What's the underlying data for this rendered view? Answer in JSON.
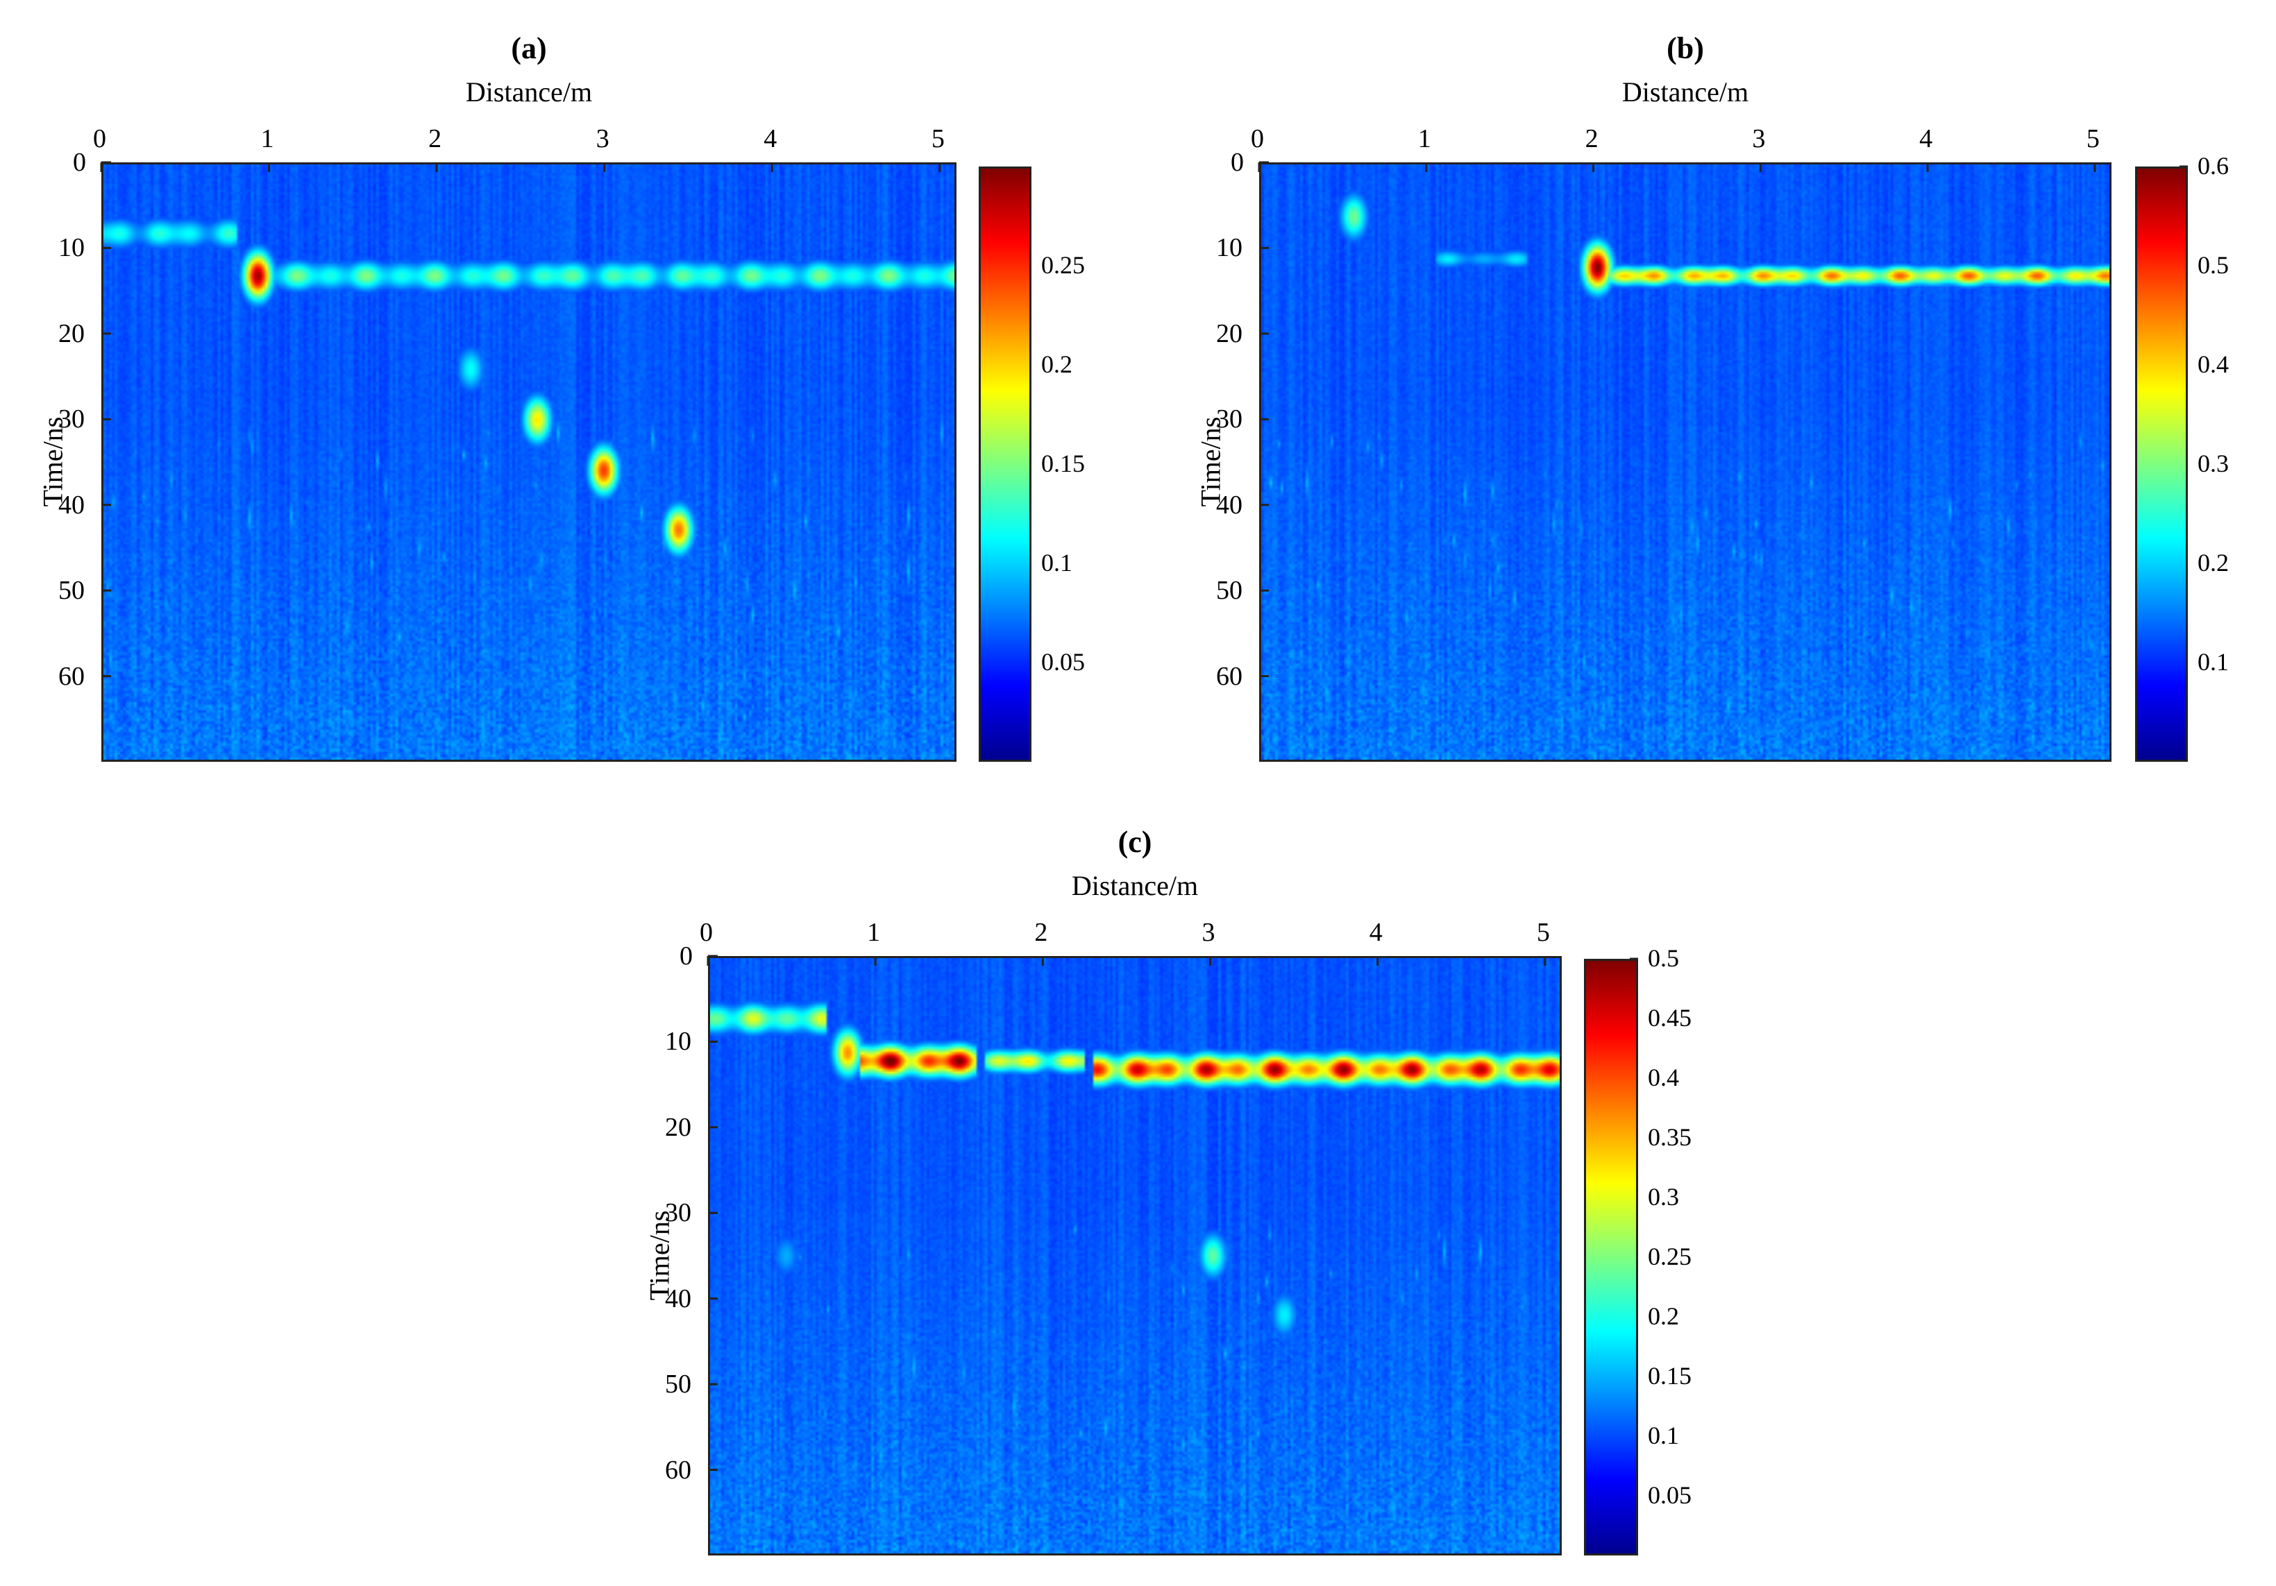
{
  "chart_data": [
    {
      "type": "heatmap",
      "panel_label": "(a)",
      "xlabel": "Distance/m",
      "ylabel": "Time/ns",
      "x_axis_position": "top",
      "xlim": [
        0,
        5.1
      ],
      "ylim": [
        0,
        70
      ],
      "y_reversed": true,
      "xticks": [
        0,
        1,
        2,
        3,
        4,
        5
      ],
      "yticks": [
        0,
        10,
        20,
        30,
        40,
        50,
        60
      ],
      "colormap": "jet",
      "colorbar": {
        "min": 0,
        "max": 0.3,
        "ticks": [
          0.05,
          0.1,
          0.15,
          0.2,
          0.25
        ]
      },
      "features": [
        {
          "kind": "horizontal_band",
          "x_range": [
            0,
            0.8
          ],
          "time": 8,
          "thickness": 4,
          "value": 0.1
        },
        {
          "kind": "horizontal_band",
          "x_range": [
            0.85,
            5.1
          ],
          "time": 13,
          "thickness": 4,
          "value": 0.12
        },
        {
          "kind": "hotspot",
          "x": 0.92,
          "time": 13,
          "value": 0.29
        },
        {
          "kind": "hotspot",
          "x": 2.2,
          "time": 24,
          "value": 0.09
        },
        {
          "kind": "hotspot",
          "x": 2.6,
          "time": 30,
          "value": 0.18
        },
        {
          "kind": "hotspot",
          "x": 3.0,
          "time": 36,
          "value": 0.24
        },
        {
          "kind": "hotspot",
          "x": 3.45,
          "time": 43,
          "value": 0.22
        }
      ]
    },
    {
      "type": "heatmap",
      "panel_label": "(b)",
      "xlabel": "Distance/m",
      "ylabel": "Time/ns",
      "x_axis_position": "top",
      "xlim": [
        0,
        5.1
      ],
      "ylim": [
        0,
        70
      ],
      "y_reversed": true,
      "xticks": [
        0,
        1,
        2,
        3,
        4,
        5
      ],
      "yticks": [
        0,
        10,
        20,
        30,
        40,
        50,
        60
      ],
      "colormap": "jet",
      "colorbar": {
        "min": 0,
        "max": 0.6,
        "ticks": [
          0.1,
          0.2,
          0.3,
          0.4,
          0.5,
          0.6
        ]
      },
      "features": [
        {
          "kind": "hotspot",
          "x": 0.55,
          "time": 6,
          "value": 0.25
        },
        {
          "kind": "horizontal_band",
          "x_range": [
            1.05,
            1.6
          ],
          "time": 11,
          "thickness": 2.5,
          "value": 0.15
        },
        {
          "kind": "horizontal_band",
          "x_range": [
            2.0,
            5.1
          ],
          "time": 13,
          "thickness": 2.5,
          "value": 0.42
        },
        {
          "kind": "hotspot",
          "x": 2.02,
          "time": 12,
          "value": 0.6
        }
      ]
    },
    {
      "type": "heatmap",
      "panel_label": "(c)",
      "xlabel": "Distance/m",
      "ylabel": "Time/ns",
      "x_axis_position": "top",
      "xlim": [
        0,
        5.1
      ],
      "ylim": [
        0,
        70
      ],
      "y_reversed": true,
      "xticks": [
        0,
        1,
        2,
        3,
        4,
        5
      ],
      "yticks": [
        0,
        10,
        20,
        30,
        40,
        50,
        60
      ],
      "colormap": "jet",
      "colorbar": {
        "min": 0,
        "max": 0.5,
        "ticks": [
          0.05,
          0.1,
          0.15,
          0.2,
          0.25,
          0.3,
          0.35,
          0.4,
          0.45,
          0.5
        ]
      },
      "features": [
        {
          "kind": "horizontal_band",
          "x_range": [
            0,
            0.7
          ],
          "time": 7,
          "thickness": 4,
          "value": 0.25
        },
        {
          "kind": "horizontal_band",
          "x_range": [
            0.9,
            1.6
          ],
          "time": 12,
          "thickness": 4,
          "value": 0.48
        },
        {
          "kind": "horizontal_band",
          "x_range": [
            1.65,
            2.25
          ],
          "time": 12,
          "thickness": 3,
          "value": 0.3
        },
        {
          "kind": "horizontal_band",
          "x_range": [
            2.3,
            5.1
          ],
          "time": 13,
          "thickness": 4,
          "value": 0.45
        },
        {
          "kind": "hotspot",
          "x": 0.82,
          "time": 11,
          "value": 0.35
        },
        {
          "kind": "hotspot",
          "x": 3.02,
          "time": 35,
          "value": 0.2
        },
        {
          "kind": "hotspot",
          "x": 3.45,
          "time": 42,
          "value": 0.14
        },
        {
          "kind": "hotspot",
          "x": 0.45,
          "time": 35,
          "value": 0.1
        }
      ]
    }
  ]
}
